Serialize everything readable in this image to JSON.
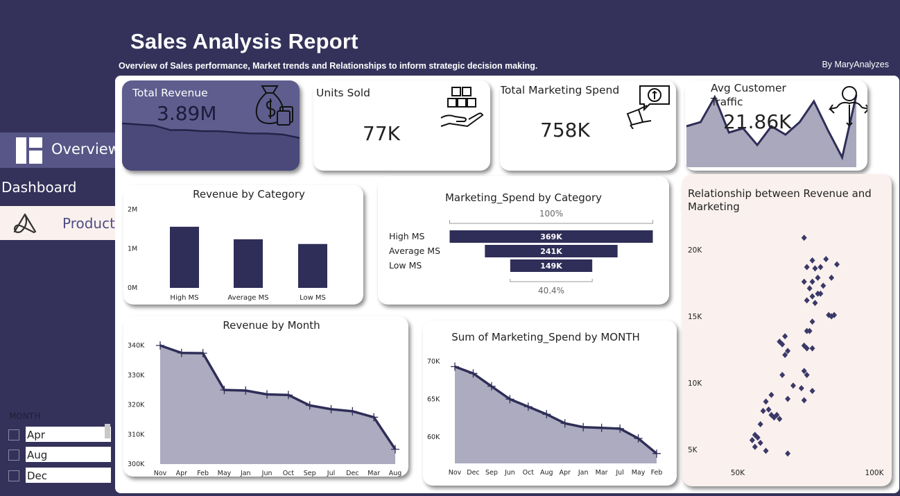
{
  "header": {
    "title": "Sales Analysis Report",
    "subtitle": "Overview of Sales performance, Market trends and Relationships to inform strategic decision making.",
    "byline": "By MaryAnalyzes"
  },
  "nav": {
    "overview_label": "Overview",
    "dashboard_label": "Dashboard",
    "product_label": "Product"
  },
  "slicer": {
    "title": "MONTH",
    "items": [
      "Apr",
      "Aug",
      "Dec"
    ]
  },
  "kpis": {
    "total_revenue": {
      "label": "Total Revenue",
      "value": "3.89M"
    },
    "units_sold": {
      "label": "Units Sold",
      "value": "77K"
    },
    "marketing_spend": {
      "label": "Total Marketing Spend",
      "value": "758K"
    },
    "customer_traffic": {
      "label": "Avg Customer\nTraffic",
      "label_line1": "Avg Customer",
      "label_line2": "Traffic",
      "value": "21.86K"
    }
  },
  "colors": {
    "background": "#34325a",
    "accent": "#2f2e58",
    "bar": "#2f2e58",
    "area_fill": "#acabbf",
    "kpi_highlight": "#5e5d8e",
    "scatter_bg": "#faf1ee"
  },
  "icons": {
    "overview": "dashboard-layout-icon",
    "product": "product-logo-icon",
    "revenue": "money-bag-icon",
    "units": "boxes-hand-icon",
    "marketing": "megaphone-money-icon",
    "traffic": "person-arrows-icon"
  },
  "chart_data": [
    {
      "id": "revenue_by_category",
      "type": "bar",
      "title": "Revenue by Category",
      "categories": [
        "High MS",
        "Average MS",
        "Low MS"
      ],
      "values": [
        1560000,
        1240000,
        1120000
      ],
      "ylim": [
        0,
        2000000
      ],
      "yticks": [
        "0M",
        "1M",
        "2M"
      ]
    },
    {
      "id": "marketing_spend_by_category",
      "type": "bar",
      "title": "Marketing_Spend by Category",
      "categories": [
        "High MS",
        "Average MS",
        "Low MS"
      ],
      "values": [
        369,
        241,
        149
      ],
      "value_labels": [
        "369K",
        "241K",
        "149K"
      ],
      "top_label": "100%",
      "bottom_label": "40.4%"
    },
    {
      "id": "revenue_by_month",
      "type": "area",
      "title": "Revenue by Month",
      "categories": [
        "Nov",
        "Apr",
        "Feb",
        "May",
        "Jan",
        "Jun",
        "Oct",
        "Sep",
        "Jul",
        "Dec",
        "Mar",
        "Aug"
      ],
      "values": [
        340,
        337.5,
        337.4,
        325,
        324.8,
        323.5,
        323.3,
        319.8,
        318.5,
        317.8,
        315.8,
        305
      ],
      "ylim": [
        300,
        340
      ],
      "yticks": [
        "300K",
        "310K",
        "320K",
        "330K",
        "340K"
      ]
    },
    {
      "id": "marketing_spend_by_month",
      "type": "area",
      "title": "Sum of Marketing_Spend by MONTH",
      "categories": [
        "Nov",
        "Dec",
        "Sep",
        "Jun",
        "Oct",
        "Aug",
        "Apr",
        "Jan",
        "Mar",
        "Jul",
        "May",
        "Feb"
      ],
      "values": [
        69.3,
        68.4,
        66.7,
        65,
        64,
        63,
        61.8,
        61.3,
        61.2,
        61.1,
        59.8,
        57.8
      ],
      "ylim": [
        56.5,
        71
      ],
      "yticks": [
        "60K",
        "65K",
        "70K"
      ]
    },
    {
      "id": "revenue_vs_marketing",
      "type": "scatter",
      "title": "Relationship between Revenue and Marketing",
      "xlim": [
        45,
        102
      ],
      "ylim": [
        3.2,
        22.2
      ],
      "xticks": [
        "50K",
        "100K"
      ],
      "yticks": [
        "5K",
        "10K",
        "15K",
        "20K"
      ],
      "points": [
        [
          74.3,
          20.9
        ],
        [
          86.3,
          18.9
        ],
        [
          80.3,
          18.7
        ],
        [
          78.3,
          18.6
        ],
        [
          75.3,
          18.7
        ],
        [
          82.3,
          19.3
        ],
        [
          79.3,
          17.9
        ],
        [
          77.3,
          17.6
        ],
        [
          74.3,
          17.6
        ],
        [
          84.3,
          17.9
        ],
        [
          81.3,
          17.3
        ],
        [
          76.3,
          17.1
        ],
        [
          79.3,
          16.7
        ],
        [
          80.3,
          16.7
        ],
        [
          75.3,
          16.2
        ],
        [
          78.3,
          16
        ],
        [
          77.3,
          16.5
        ],
        [
          84.3,
          15
        ],
        [
          85.3,
          15.1
        ],
        [
          83.3,
          15.1
        ],
        [
          77.3,
          14.6
        ],
        [
          76.3,
          13.9
        ],
        [
          75.3,
          13.9
        ],
        [
          67.3,
          13.5
        ],
        [
          65.3,
          13.1
        ],
        [
          66.3,
          12.9
        ],
        [
          68.3,
          12.4
        ],
        [
          67.3,
          12.1
        ],
        [
          74.3,
          12.8
        ],
        [
          75.3,
          12.6
        ],
        [
          77.3,
          12.6
        ],
        [
          66.3,
          10.6
        ],
        [
          74.3,
          10.9
        ],
        [
          75.3,
          10.6
        ],
        [
          70.3,
          9.8
        ],
        [
          73.3,
          9.6
        ],
        [
          77.3,
          9.4
        ],
        [
          68.3,
          8.8
        ],
        [
          74.3,
          8.7
        ],
        [
          62.3,
          9.1
        ],
        [
          60.3,
          8.6
        ],
        [
          61.3,
          8
        ],
        [
          59.3,
          7.9
        ],
        [
          64.3,
          7.6
        ],
        [
          65.3,
          7.3
        ],
        [
          62.3,
          7.6
        ],
        [
          63.3,
          7.4
        ],
        [
          58.3,
          6.9
        ],
        [
          57.3,
          5.9
        ],
        [
          56.3,
          6.1
        ],
        [
          55.3,
          5.7
        ],
        [
          58.3,
          5.5
        ],
        [
          60.3,
          4.9
        ],
        [
          56.3,
          5.2
        ],
        [
          68.3,
          4.7
        ],
        [
          77.3,
          19.2
        ]
      ]
    },
    {
      "id": "revenue_sparkline",
      "type": "line",
      "values": [
        3.92,
        3.91,
        3.9,
        3.86,
        3.86,
        3.85,
        3.85,
        3.84,
        3.83,
        3.83,
        3.82,
        3.79
      ],
      "ylim": [
        3.5,
        4.3
      ]
    },
    {
      "id": "traffic_sparkline",
      "type": "area",
      "values": [
        21.5,
        21.7,
        22.9,
        21.2,
        21.4,
        20.6,
        21.5,
        21.1,
        21.7,
        22.7,
        21.3,
        20,
        23
      ]
    }
  ]
}
